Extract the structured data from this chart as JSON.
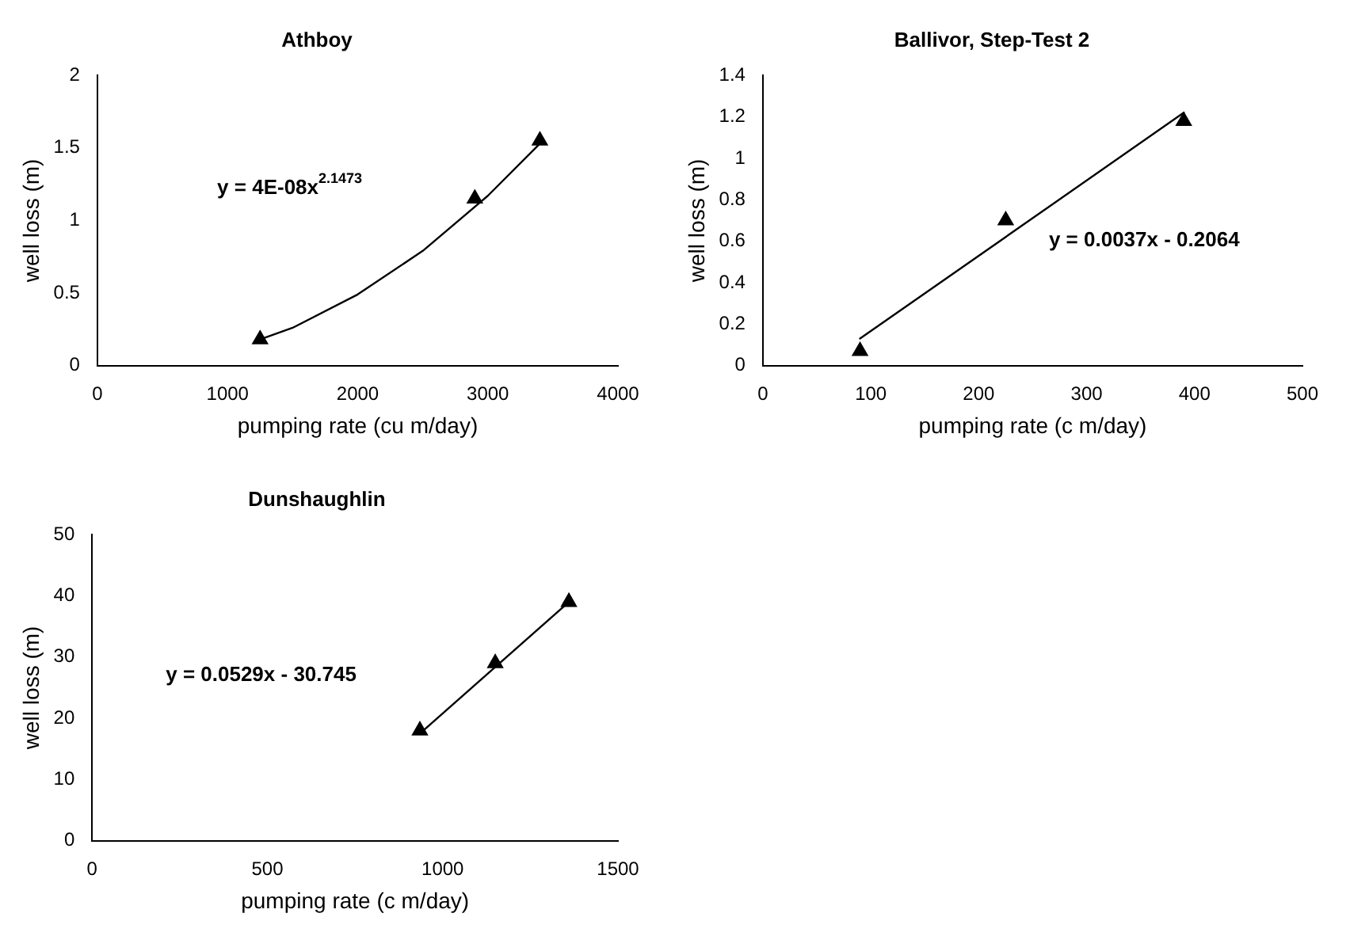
{
  "chart_data": [
    {
      "type": "scatter",
      "title": "Athboy",
      "xlabel": "pumping rate (cu m/day)",
      "ylabel": "well loss (m)",
      "xlim": [
        0,
        4000
      ],
      "xticks": [
        0,
        1000,
        2000,
        3000,
        4000
      ],
      "ylim": [
        0,
        2
      ],
      "yticks": [
        0,
        0.5,
        1,
        1.5,
        2
      ],
      "grid": false,
      "legend": false,
      "annotations": [
        "y = 4E-08x$^{2.1473}$"
      ],
      "series": [
        {
          "type": "scatter",
          "marker": "triangle",
          "color": "#000000",
          "x": [
            1250,
            2900,
            3400
          ],
          "values": [
            0.18,
            1.15,
            1.55
          ]
        },
        {
          "type": "line",
          "marker": "none",
          "color": "#000000",
          "x": [
            1250,
            1500,
            2000,
            2500,
            3000,
            3400
          ],
          "values": [
            0.18,
            0.26,
            0.49,
            0.79,
            1.17,
            1.53
          ]
        }
      ]
    },
    {
      "type": "scatter",
      "title": "Ballivor, Step-Test 2",
      "xlabel": "pumping rate (c m/day)",
      "ylabel": "well loss (m)",
      "xlim": [
        0,
        500
      ],
      "xticks": [
        0,
        100,
        200,
        300,
        400,
        500
      ],
      "ylim": [
        0,
        1.4
      ],
      "yticks": [
        0,
        0.2,
        0.4,
        0.6,
        0.8,
        1,
        1.2,
        1.4
      ],
      "grid": false,
      "legend": false,
      "annotations": [
        "y = 0.0037x - 0.2064"
      ],
      "series": [
        {
          "type": "scatter",
          "marker": "triangle",
          "color": "#000000",
          "x": [
            90,
            225,
            390
          ],
          "values": [
            0.07,
            0.7,
            1.18
          ]
        },
        {
          "type": "line",
          "marker": "none",
          "color": "#000000",
          "x": [
            90,
            390
          ],
          "values": [
            0.13,
            1.22
          ]
        }
      ]
    },
    {
      "type": "scatter",
      "title": "Dunshaughlin",
      "xlabel": "pumping rate (c m/day)",
      "ylabel": "well loss (m)",
      "xlim": [
        0,
        1500
      ],
      "xticks": [
        0,
        500,
        1000,
        1500
      ],
      "ylim": [
        0,
        50
      ],
      "yticks": [
        0,
        10,
        20,
        30,
        40,
        50
      ],
      "grid": false,
      "legend": false,
      "annotations": [
        "y = 0.0529x - 30.745"
      ],
      "series": [
        {
          "type": "scatter",
          "marker": "triangle",
          "color": "#000000",
          "x": [
            935,
            1150,
            1360
          ],
          "values": [
            18,
            29,
            39
          ]
        },
        {
          "type": "line",
          "marker": "none",
          "color": "#000000",
          "x": [
            935,
            1360
          ],
          "values": [
            17.5,
            39
          ]
        }
      ]
    }
  ]
}
